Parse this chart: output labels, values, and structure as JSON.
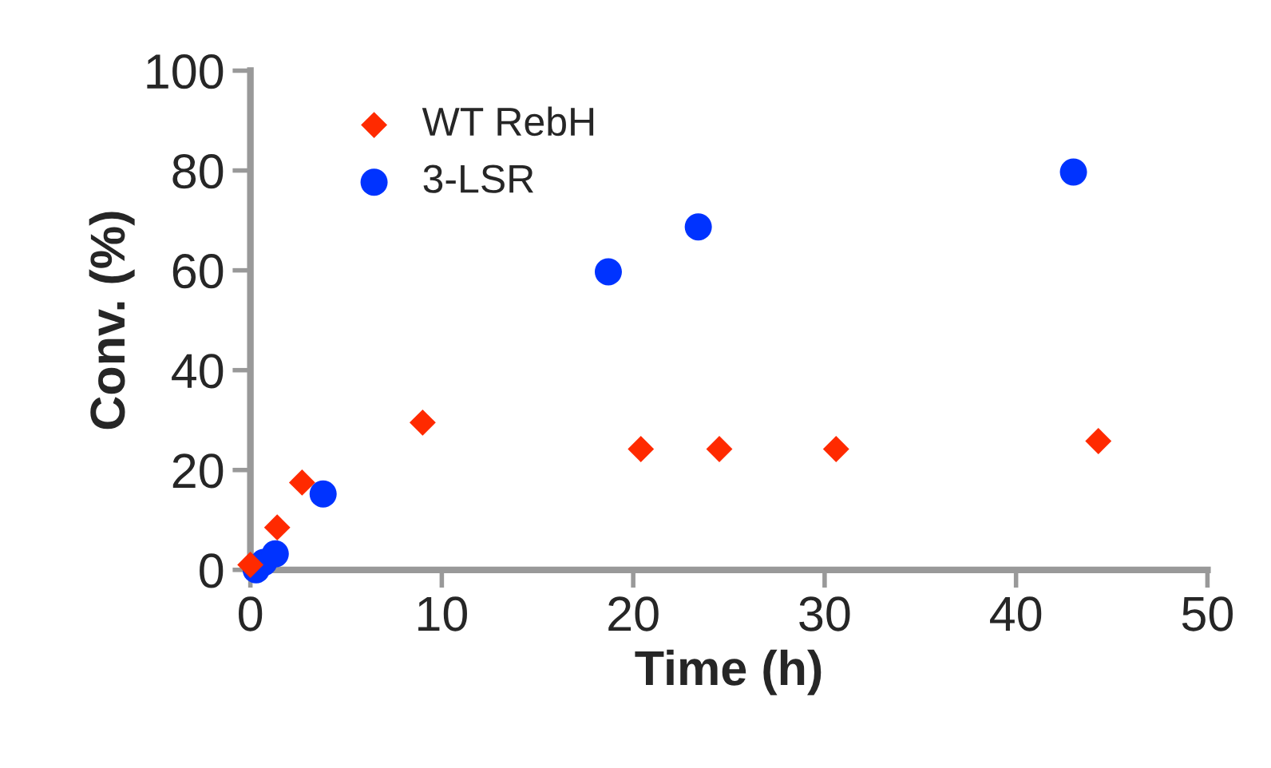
{
  "chart_data": {
    "type": "scatter",
    "xlabel": "Time (h)",
    "ylabel": "Conv. (%)",
    "xlim": [
      0,
      50
    ],
    "ylim": [
      0,
      100
    ],
    "xticks": [
      0,
      10,
      20,
      30,
      40,
      50
    ],
    "yticks": [
      0,
      20,
      40,
      60,
      80,
      100
    ],
    "grid": false,
    "legend": "top left",
    "series": [
      {
        "name": "WT RebH",
        "color": "#ff2a00",
        "marker": "diamond",
        "x": [
          0,
          1.4,
          2.7,
          9,
          20.4,
          24.5,
          30.6,
          44.3
        ],
        "values": [
          1,
          8.5,
          17.5,
          29.5,
          24.2,
          24.2,
          24.2,
          25.8
        ]
      },
      {
        "name": "3-LSR",
        "color": "#0033ff",
        "marker": "circle",
        "x": [
          0.3,
          0.7,
          1.3,
          3.8,
          18.7,
          23.4,
          43
        ],
        "values": [
          0,
          1.5,
          3.2,
          15.2,
          59.7,
          68.7,
          79.7
        ]
      }
    ]
  }
}
